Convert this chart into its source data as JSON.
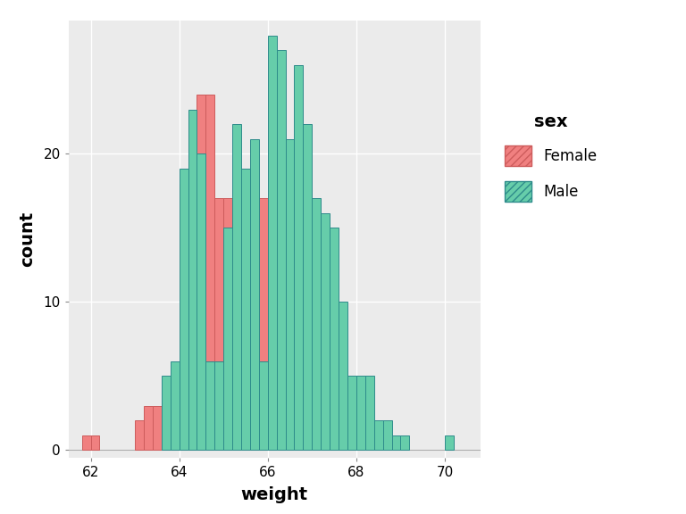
{
  "title": "",
  "xlabel": "weight",
  "ylabel": "count",
  "legend_title": "sex",
  "legend_labels": [
    "Female",
    "Male"
  ],
  "female_color": "#F08080",
  "male_color": "#66CDAA",
  "female_edge_color": "#CD5C5C",
  "male_edge_color": "#2E8B8B",
  "background_color": "#EBEBEB",
  "grid_color": "#FFFFFF",
  "xlim": [
    61.5,
    70.8
  ],
  "ylim": [
    -0.5,
    29
  ],
  "xticks": [
    62,
    64,
    66,
    68,
    70
  ],
  "yticks": [
    0,
    10,
    20
  ],
  "bin_width": 0.2,
  "female_bin_starts": [
    61.8,
    62.0,
    62.2,
    62.4,
    62.6,
    62.8,
    63.0,
    63.2,
    63.4,
    63.6,
    63.8,
    64.0,
    64.2,
    64.4,
    64.6,
    64.8,
    65.0,
    65.2,
    65.4,
    65.6,
    65.8,
    66.0,
    66.2,
    66.4,
    66.6,
    66.8,
    67.0
  ],
  "female_counts": [
    1,
    1,
    0,
    0,
    0,
    0,
    2,
    3,
    3,
    3,
    3,
    18,
    17,
    24,
    24,
    17,
    17,
    16,
    16,
    17,
    17,
    9,
    5,
    4,
    3,
    1,
    1
  ],
  "male_bin_starts": [
    63.6,
    63.8,
    64.0,
    64.2,
    64.4,
    64.6,
    64.8,
    65.0,
    65.2,
    65.4,
    65.6,
    65.8,
    66.0,
    66.2,
    66.4,
    66.6,
    66.8,
    67.0,
    67.2,
    67.4,
    67.6,
    67.8,
    68.0,
    68.2,
    68.4,
    68.6,
    68.8,
    69.0,
    69.2,
    69.4,
    70.0
  ],
  "male_counts": [
    5,
    6,
    19,
    23,
    20,
    6,
    6,
    15,
    22,
    19,
    21,
    6,
    28,
    27,
    21,
    26,
    22,
    17,
    16,
    15,
    10,
    5,
    5,
    5,
    2,
    2,
    1,
    1,
    0,
    0,
    1
  ],
  "label_fontsize": 14,
  "legend_title_fontsize": 13,
  "legend_fontsize": 12,
  "tick_fontsize": 11
}
